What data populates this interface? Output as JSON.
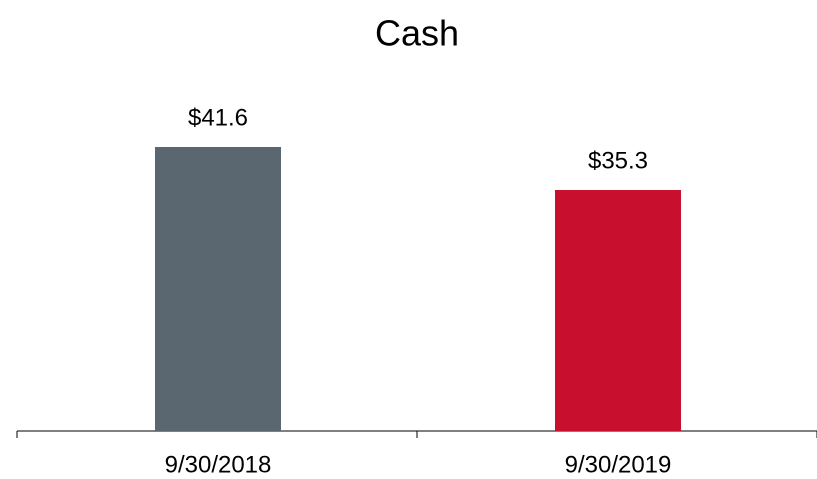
{
  "chart_data": {
    "type": "bar",
    "title": "Cash",
    "categories": [
      "9/30/2018",
      "9/30/2019"
    ],
    "values": [
      41.6,
      35.3
    ],
    "value_labels": [
      "$41.6",
      "$35.3"
    ],
    "colors": [
      "#5a6670",
      "#c8102e"
    ]
  }
}
